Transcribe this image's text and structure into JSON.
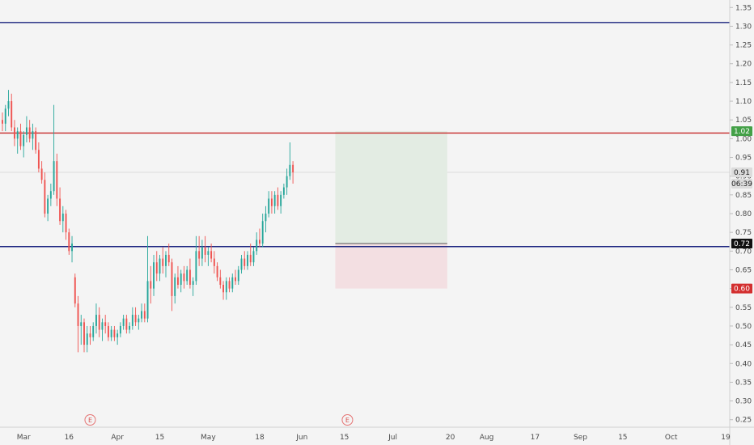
{
  "chart_data": {
    "type": "candlestick",
    "y_axis": {
      "range": [
        0.23,
        1.37
      ],
      "ticks": [
        "1.35",
        "1.30",
        "1.25",
        "1.20",
        "1.15",
        "1.10",
        "1.05",
        "1.00",
        "0.95",
        "0.90",
        "0.85",
        "0.80",
        "0.75",
        "0.70",
        "0.65",
        "0.60",
        "0.55",
        "0.50",
        "0.45",
        "0.40",
        "0.35",
        "0.30",
        "0.25"
      ]
    },
    "x_axis": {
      "ticks": [
        {
          "label": "Mar",
          "day": 0
        },
        {
          "label": "16",
          "day": 15
        },
        {
          "label": "Apr",
          "day": 31
        },
        {
          "label": "15",
          "day": 45
        },
        {
          "label": "May",
          "day": 61
        },
        {
          "label": "18",
          "day": 78
        },
        {
          "label": "Jun",
          "day": 92
        },
        {
          "label": "15",
          "day": 106
        },
        {
          "label": "Jul",
          "day": 122
        },
        {
          "label": "20",
          "day": 141
        },
        {
          "label": "Aug",
          "day": 153
        },
        {
          "label": "17",
          "day": 169
        },
        {
          "label": "Sep",
          "day": 184
        },
        {
          "label": "15",
          "day": 198
        },
        {
          "label": "Oct",
          "day": 214
        },
        {
          "label": "19",
          "day": 232
        }
      ],
      "range_days": [
        -7,
        232
      ]
    },
    "levels": [
      {
        "name": "resistance-top",
        "price": 1.31,
        "color": "#1a237e"
      },
      {
        "name": "resistance",
        "price": 1.015,
        "color": "#c62828"
      },
      {
        "name": "support",
        "price": 0.712,
        "color": "#1a237e"
      }
    ],
    "position": {
      "entry": 0.72,
      "target": 1.02,
      "stop": 0.6,
      "start_day": 103,
      "end_day": 140,
      "profit_color": "#e3ece3",
      "loss_color": "#f3dfe2"
    },
    "price_labels": [
      {
        "value": "1.02",
        "price": 1.02,
        "bg": "#43a047"
      },
      {
        "value": "0.91",
        "price": 0.91,
        "bg": "#dcdcdc",
        "dark": true
      },
      {
        "value": "06:39",
        "price": 0.88,
        "bg": "#dcdcdc",
        "dark": true
      },
      {
        "value": "0.72",
        "price": 0.72,
        "bg": "#111111"
      },
      {
        "value": "0.60",
        "price": 0.6,
        "bg": "#d32f2f"
      }
    ],
    "earnings": [
      {
        "label": "E",
        "day": 22
      },
      {
        "label": "E",
        "day": 107
      }
    ],
    "colors": {
      "up": "#26a69a",
      "down": "#ef5350"
    },
    "candles": [
      [
        -7,
        1.05,
        1.07,
        1.02,
        1.04
      ],
      [
        -6,
        1.04,
        1.09,
        1.02,
        1.08
      ],
      [
        -5,
        1.08,
        1.13,
        1.06,
        1.1
      ],
      [
        -4,
        1.1,
        1.12,
        1.02,
        1.03
      ],
      [
        -3,
        1.03,
        1.05,
        0.98,
        1.0
      ],
      [
        -2,
        1.0,
        1.03,
        0.96,
        1.02
      ],
      [
        -1,
        1.02,
        1.04,
        0.97,
        0.98
      ],
      [
        0,
        0.98,
        1.02,
        0.95,
        1.01
      ],
      [
        1,
        1.01,
        1.06,
        0.99,
        1.03
      ],
      [
        2,
        1.03,
        1.05,
        0.99,
        1.0
      ],
      [
        3,
        1.0,
        1.04,
        0.97,
        1.02
      ],
      [
        4,
        1.02,
        1.03,
        0.96,
        0.97
      ],
      [
        5,
        0.97,
        0.99,
        0.91,
        0.92
      ],
      [
        6,
        0.92,
        0.94,
        0.88,
        0.89
      ],
      [
        7,
        0.89,
        0.91,
        0.79,
        0.8
      ],
      [
        8,
        0.8,
        0.85,
        0.78,
        0.84
      ],
      [
        9,
        0.84,
        0.88,
        0.82,
        0.86
      ],
      [
        10,
        0.86,
        1.09,
        0.85,
        0.94
      ],
      [
        11,
        0.94,
        0.96,
        0.82,
        0.84
      ],
      [
        12,
        0.84,
        0.87,
        0.77,
        0.78
      ],
      [
        13,
        0.78,
        0.82,
        0.75,
        0.8
      ],
      [
        14,
        0.8,
        0.81,
        0.73,
        0.75
      ],
      [
        15,
        0.75,
        0.76,
        0.69,
        0.7
      ],
      [
        16,
        0.7,
        0.74,
        0.67,
        0.72
      ],
      [
        17,
        0.63,
        0.64,
        0.55,
        0.56
      ],
      [
        18,
        0.56,
        0.58,
        0.43,
        0.5
      ],
      [
        19,
        0.5,
        0.53,
        0.45,
        0.51
      ],
      [
        20,
        0.51,
        0.52,
        0.43,
        0.45
      ],
      [
        21,
        0.45,
        0.5,
        0.43,
        0.48
      ],
      [
        22,
        0.48,
        0.5,
        0.45,
        0.47
      ],
      [
        23,
        0.47,
        0.51,
        0.46,
        0.5
      ],
      [
        24,
        0.5,
        0.56,
        0.48,
        0.53
      ],
      [
        25,
        0.53,
        0.55,
        0.47,
        0.49
      ],
      [
        26,
        0.49,
        0.52,
        0.46,
        0.51
      ],
      [
        27,
        0.51,
        0.53,
        0.48,
        0.5
      ],
      [
        28,
        0.5,
        0.51,
        0.46,
        0.47
      ],
      [
        29,
        0.47,
        0.5,
        0.46,
        0.49
      ],
      [
        30,
        0.49,
        0.5,
        0.46,
        0.47
      ],
      [
        31,
        0.47,
        0.49,
        0.45,
        0.48
      ],
      [
        32,
        0.48,
        0.51,
        0.47,
        0.5
      ],
      [
        33,
        0.5,
        0.53,
        0.49,
        0.52
      ],
      [
        34,
        0.52,
        0.53,
        0.48,
        0.49
      ],
      [
        35,
        0.49,
        0.51,
        0.48,
        0.5
      ],
      [
        36,
        0.5,
        0.55,
        0.49,
        0.53
      ],
      [
        37,
        0.53,
        0.55,
        0.5,
        0.51
      ],
      [
        38,
        0.51,
        0.53,
        0.49,
        0.52
      ],
      [
        39,
        0.52,
        0.56,
        0.51,
        0.54
      ],
      [
        40,
        0.54,
        0.56,
        0.51,
        0.52
      ],
      [
        41,
        0.52,
        0.74,
        0.51,
        0.62
      ],
      [
        42,
        0.62,
        0.66,
        0.56,
        0.6
      ],
      [
        43,
        0.6,
        0.69,
        0.58,
        0.67
      ],
      [
        44,
        0.67,
        0.7,
        0.62,
        0.64
      ],
      [
        45,
        0.64,
        0.69,
        0.62,
        0.68
      ],
      [
        46,
        0.68,
        0.71,
        0.64,
        0.66
      ],
      [
        47,
        0.66,
        0.7,
        0.63,
        0.69
      ],
      [
        48,
        0.69,
        0.72,
        0.66,
        0.67
      ],
      [
        49,
        0.67,
        0.68,
        0.54,
        0.58
      ],
      [
        50,
        0.58,
        0.64,
        0.56,
        0.63
      ],
      [
        51,
        0.63,
        0.66,
        0.6,
        0.61
      ],
      [
        52,
        0.61,
        0.65,
        0.59,
        0.64
      ],
      [
        53,
        0.64,
        0.66,
        0.6,
        0.62
      ],
      [
        54,
        0.62,
        0.66,
        0.61,
        0.65
      ],
      [
        55,
        0.65,
        0.68,
        0.6,
        0.61
      ],
      [
        56,
        0.61,
        0.63,
        0.58,
        0.62
      ],
      [
        57,
        0.62,
        0.74,
        0.61,
        0.7
      ],
      [
        58,
        0.7,
        0.74,
        0.66,
        0.68
      ],
      [
        59,
        0.68,
        0.73,
        0.66,
        0.71
      ],
      [
        60,
        0.71,
        0.74,
        0.67,
        0.69
      ],
      [
        61,
        0.69,
        0.71,
        0.66,
        0.7
      ],
      [
        62,
        0.7,
        0.72,
        0.67,
        0.68
      ],
      [
        63,
        0.68,
        0.7,
        0.64,
        0.66
      ],
      [
        64,
        0.66,
        0.67,
        0.62,
        0.63
      ],
      [
        65,
        0.63,
        0.65,
        0.6,
        0.61
      ],
      [
        66,
        0.61,
        0.62,
        0.57,
        0.59
      ],
      [
        67,
        0.59,
        0.63,
        0.57,
        0.62
      ],
      [
        68,
        0.62,
        0.63,
        0.59,
        0.6
      ],
      [
        69,
        0.6,
        0.64,
        0.59,
        0.63
      ],
      [
        70,
        0.63,
        0.65,
        0.61,
        0.62
      ],
      [
        71,
        0.62,
        0.66,
        0.61,
        0.65
      ],
      [
        72,
        0.65,
        0.69,
        0.64,
        0.68
      ],
      [
        73,
        0.68,
        0.7,
        0.65,
        0.66
      ],
      [
        74,
        0.66,
        0.7,
        0.65,
        0.69
      ],
      [
        75,
        0.69,
        0.72,
        0.66,
        0.67
      ],
      [
        76,
        0.67,
        0.71,
        0.66,
        0.7
      ],
      [
        77,
        0.7,
        0.75,
        0.69,
        0.73
      ],
      [
        78,
        0.73,
        0.76,
        0.71,
        0.72
      ],
      [
        79,
        0.72,
        0.8,
        0.71,
        0.78
      ],
      [
        80,
        0.78,
        0.82,
        0.75,
        0.8
      ],
      [
        81,
        0.8,
        0.86,
        0.79,
        0.84
      ],
      [
        82,
        0.84,
        0.86,
        0.8,
        0.82
      ],
      [
        83,
        0.82,
        0.86,
        0.8,
        0.85
      ],
      [
        84,
        0.85,
        0.87,
        0.81,
        0.82
      ],
      [
        85,
        0.82,
        0.86,
        0.8,
        0.85
      ],
      [
        86,
        0.85,
        0.88,
        0.84,
        0.87
      ],
      [
        87,
        0.87,
        0.92,
        0.85,
        0.9
      ],
      [
        88,
        0.9,
        0.99,
        0.89,
        0.93
      ],
      [
        89,
        0.93,
        0.94,
        0.88,
        0.91
      ]
    ]
  }
}
